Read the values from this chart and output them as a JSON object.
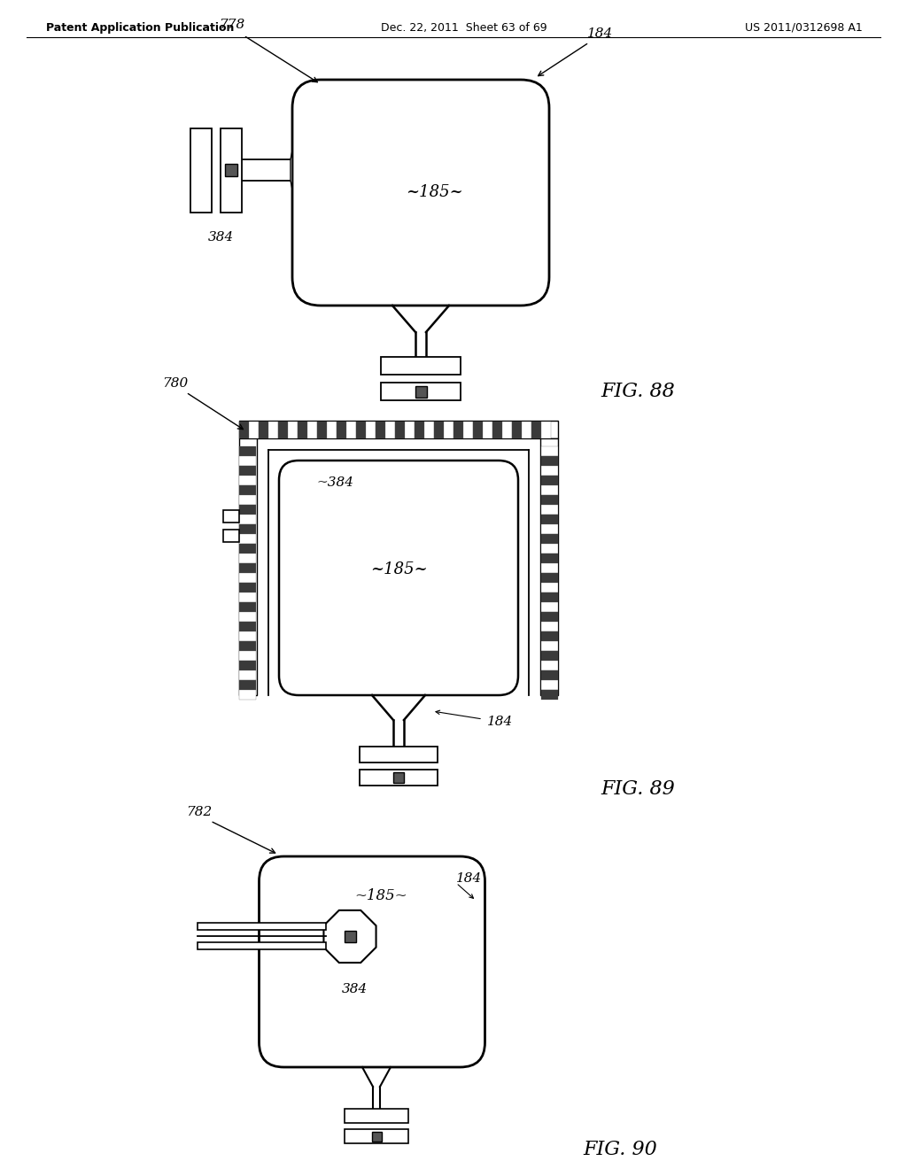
{
  "header_left": "Patent Application Publication",
  "header_mid": "Dec. 22, 2011  Sheet 63 of 69",
  "header_right": "US 2011/0312698 A1",
  "fig88_label": "FIG. 88",
  "fig89_label": "FIG. 89",
  "fig90_label": "FIG. 90",
  "bg_color": "#ffffff",
  "line_color": "#000000"
}
